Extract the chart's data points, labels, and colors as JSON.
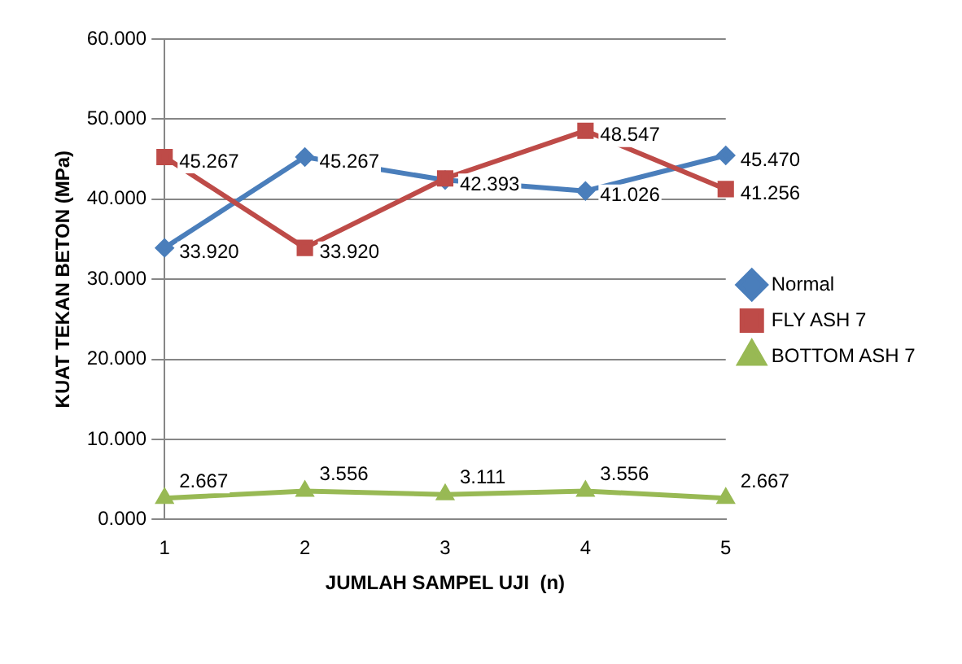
{
  "chart_data": {
    "type": "line",
    "xlabel": "JUMLAH SAMPEL UJI  (n)",
    "ylabel": "KUAT TEKAN BETON (MPa)",
    "categories": [
      "1",
      "2",
      "3",
      "4",
      "5"
    ],
    "series": [
      {
        "name": "Normal",
        "color": "#4a7ebb",
        "marker": "diamond",
        "values": [
          33.92,
          45.267,
          42.393,
          41.026,
          45.47
        ],
        "value_labels": [
          "33.920",
          "45.267",
          "42.393",
          "41.026",
          "45.470"
        ]
      },
      {
        "name": "FLY ASH 7",
        "color": "#be4b48",
        "marker": "square",
        "values": [
          45.267,
          33.92,
          42.6,
          48.547,
          41.256
        ],
        "value_labels": [
          "45.267",
          "33.920",
          null,
          "48.547",
          "41.256"
        ]
      },
      {
        "name": "BOTTOM ASH 7",
        "color": "#98b954",
        "marker": "triangle",
        "values": [
          2.667,
          3.556,
          3.111,
          3.556,
          2.667
        ],
        "value_labels": [
          "2.667",
          "3.556",
          "3.111",
          "3.556",
          "2.667"
        ]
      }
    ],
    "ylim": [
      0,
      60
    ],
    "yticks": [
      {
        "value": 0,
        "label": "0.000"
      },
      {
        "value": 10,
        "label": "10.000"
      },
      {
        "value": 20,
        "label": "20.000"
      },
      {
        "value": 30,
        "label": "30.000"
      },
      {
        "value": 40,
        "label": "40.000"
      },
      {
        "value": 50,
        "label": "50.000"
      },
      {
        "value": 60,
        "label": "60.000"
      }
    ],
    "grid": "y",
    "legend": "right"
  }
}
